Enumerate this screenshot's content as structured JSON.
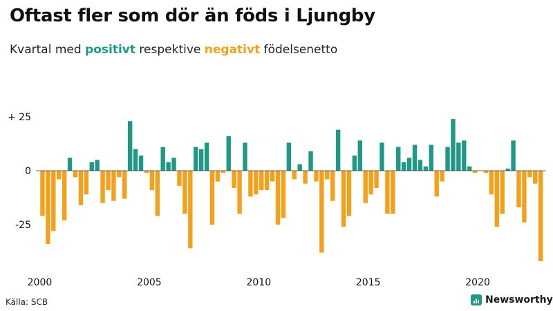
{
  "header": {
    "title": "Oftast fler som dör än föds i Ljungby",
    "subtitle_prefix": "Kvartal med ",
    "subtitle_positive": "positivt",
    "subtitle_middle": " respektive ",
    "subtitle_negative": "negativt",
    "subtitle_suffix": " födelsenetto"
  },
  "footer": {
    "source": "Källa: SCB",
    "brand": "Newsworthy"
  },
  "colors": {
    "positive": "#1f9985",
    "negative": "#f5a01a",
    "axis_text": "#111111",
    "zero_line": "#333333"
  },
  "icons": {
    "brand_logo": "bar-chart-logo-icon"
  },
  "chart_data": {
    "type": "bar",
    "title": "",
    "xlabel": "",
    "ylabel": "",
    "ylim": [
      -45,
      30
    ],
    "y_ticks": [
      {
        "value": 25,
        "label": "+ 25"
      },
      {
        "value": 0,
        "label": "0"
      },
      {
        "value": -25,
        "label": "-25"
      }
    ],
    "x_ticks": [
      {
        "year": 2000,
        "label": "2000"
      },
      {
        "year": 2005,
        "label": "2005"
      },
      {
        "year": 2010,
        "label": "2010"
      },
      {
        "year": 2015,
        "label": "2015"
      },
      {
        "year": 2020,
        "label": "2020"
      }
    ],
    "start_year": 2000,
    "start_quarter": 1,
    "grid": false,
    "values": [
      -21,
      -34,
      -28,
      -4,
      -23,
      6,
      -3,
      -16,
      -11,
      4,
      5,
      -15,
      -9,
      -14,
      -3,
      -13,
      23,
      10,
      7,
      -1,
      -9,
      -21,
      11,
      4,
      6,
      -7,
      -20,
      -36,
      11,
      10,
      13,
      -25,
      -5,
      -1,
      16,
      -8,
      -20,
      13,
      -12,
      -11,
      -9,
      -9,
      -5,
      -25,
      -22,
      13,
      -4,
      3,
      -6,
      9,
      -5,
      -38,
      -4,
      -14,
      19,
      -26,
      -21,
      7,
      14,
      -15,
      -11,
      -8,
      13,
      -20,
      -20,
      11,
      4,
      6,
      12,
      5,
      2,
      12,
      -12,
      -5,
      11,
      24,
      13,
      14,
      2,
      -1,
      0,
      -1,
      -11,
      -26,
      -20,
      1,
      14,
      -17,
      -24,
      -3,
      -6,
      -42
    ]
  }
}
